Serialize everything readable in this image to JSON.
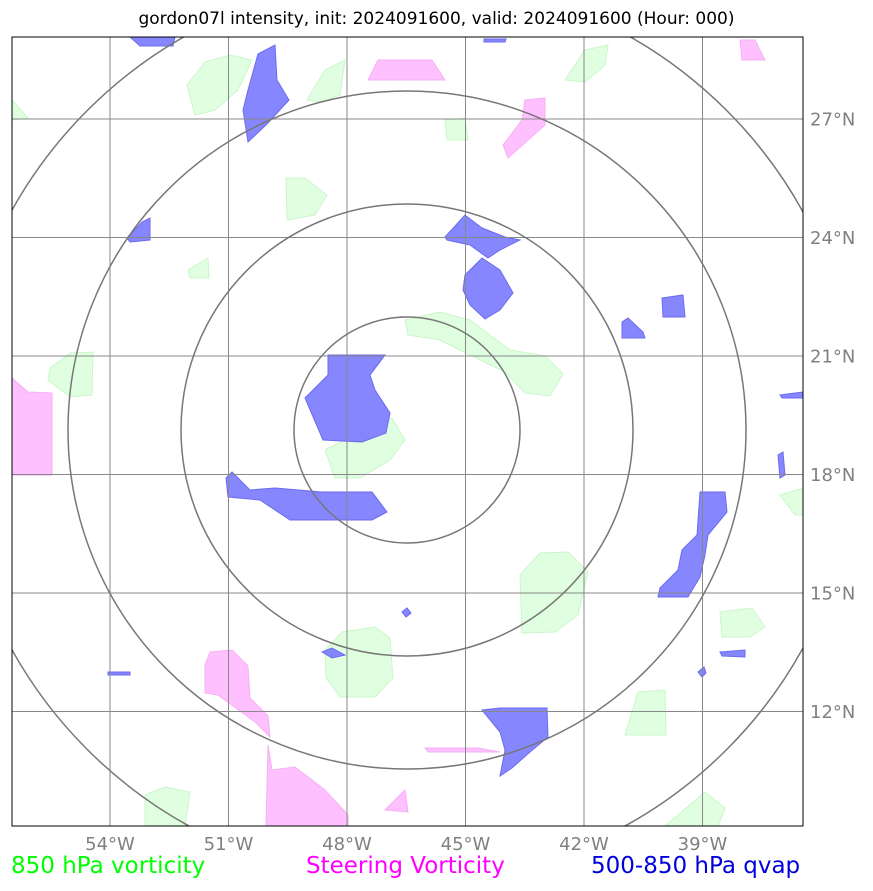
{
  "title": "gordon07l intensity, init: 2024091600, valid: 2024091600 (Hour: 000)",
  "legend": [
    {
      "label": "850 hPa vorticity",
      "color": "#00ff00"
    },
    {
      "label": "Steering Vorticity",
      "color": "#ff00ff"
    },
    {
      "label": "500-850 hPa qvap",
      "color": "#0000dd"
    }
  ],
  "colors": {
    "vort850_fill": "#e0ffe0",
    "steering_fill": "#ffc0ff",
    "qvap_fill": "#8080ff",
    "grid": "#888888",
    "rings": "#777777",
    "tick_text": "#808080"
  },
  "map": {
    "lon_ticks": [
      "54°W",
      "51°W",
      "48°W",
      "45°W",
      "42°W",
      "39°W"
    ],
    "lat_ticks": [
      "27°N",
      "24°N",
      "21°N",
      "18°N",
      "15°N",
      "12°N"
    ],
    "lon_values": [
      -54,
      -51,
      -48,
      -45,
      -42,
      -39
    ],
    "lat_values": [
      27,
      24,
      21,
      18,
      15,
      12
    ],
    "center": {
      "lon": -46.5,
      "lat": 19.2
    },
    "ring_radii_deg": [
      2.85,
      5.7,
      8.55,
      11.4
    ]
  }
}
